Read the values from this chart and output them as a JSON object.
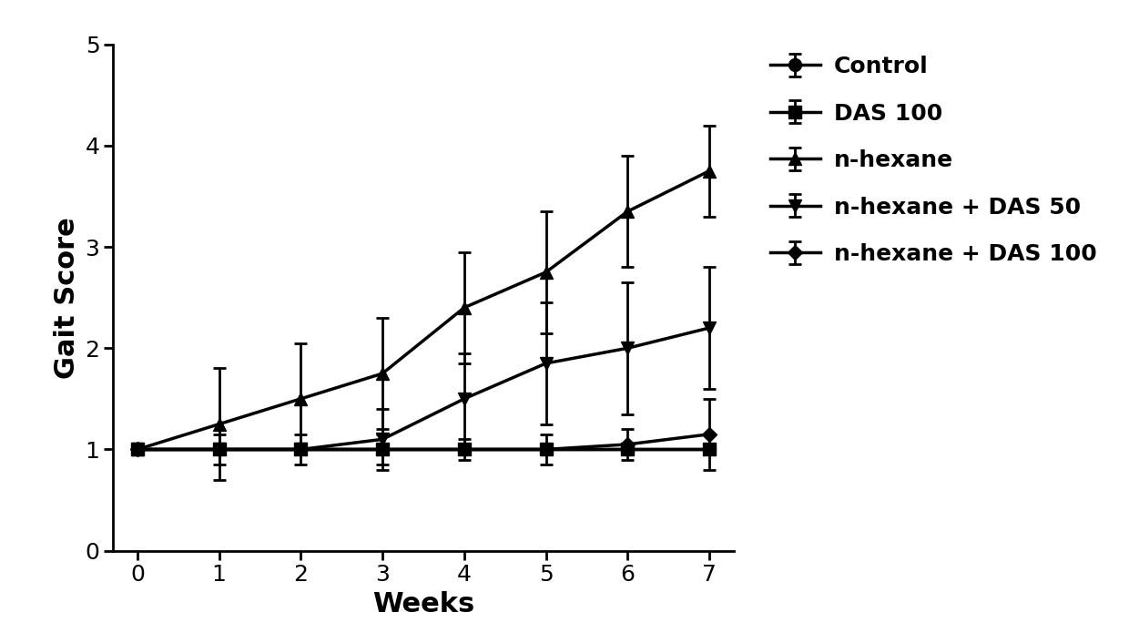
{
  "weeks": [
    0,
    1,
    2,
    3,
    4,
    5,
    6,
    7
  ],
  "series_order": [
    "Control",
    "DAS 100",
    "n-hexane",
    "n-hexane + DAS 50",
    "n-hexane + DAS 100"
  ],
  "series": {
    "Control": {
      "y": [
        1.0,
        1.0,
        1.0,
        1.0,
        1.0,
        1.0,
        1.0,
        1.0
      ],
      "yerr": [
        0.0,
        0.0,
        0.0,
        0.0,
        0.0,
        0.0,
        0.0,
        0.0
      ],
      "marker": "o",
      "markersize": 10,
      "linewidth": 2.5
    },
    "DAS 100": {
      "y": [
        1.0,
        1.0,
        1.0,
        1.0,
        1.0,
        1.0,
        1.0,
        1.0
      ],
      "yerr": [
        0.0,
        0.0,
        0.0,
        0.0,
        0.0,
        0.0,
        0.0,
        0.0
      ],
      "marker": "s",
      "markersize": 10,
      "linewidth": 2.5
    },
    "n-hexane": {
      "y": [
        1.0,
        1.25,
        1.5,
        1.75,
        2.4,
        2.75,
        3.35,
        3.75
      ],
      "yerr": [
        0.0,
        0.55,
        0.55,
        0.55,
        0.55,
        0.6,
        0.55,
        0.45
      ],
      "marker": "^",
      "markersize": 10,
      "linewidth": 2.5
    },
    "n-hexane + DAS 50": {
      "y": [
        1.0,
        1.0,
        1.0,
        1.1,
        1.5,
        1.85,
        2.0,
        2.2
      ],
      "yerr": [
        0.0,
        0.15,
        0.15,
        0.3,
        0.45,
        0.6,
        0.65,
        0.6
      ],
      "marker": "v",
      "markersize": 10,
      "linewidth": 2.5
    },
    "n-hexane + DAS 100": {
      "y": [
        1.0,
        1.0,
        1.0,
        1.0,
        1.0,
        1.0,
        1.05,
        1.15
      ],
      "yerr": [
        0.0,
        0.05,
        0.05,
        0.15,
        0.1,
        0.15,
        0.15,
        0.35
      ],
      "marker": "D",
      "markersize": 8,
      "linewidth": 2.5
    }
  },
  "color": "#000000",
  "xlabel": "Weeks",
  "ylabel": "Gait Score",
  "xlim": [
    -0.3,
    7.3
  ],
  "ylim": [
    0,
    5
  ],
  "yticks": [
    0,
    1,
    2,
    3,
    4,
    5
  ],
  "xticks": [
    0,
    1,
    2,
    3,
    4,
    5,
    6,
    7
  ],
  "xlabel_fontsize": 22,
  "ylabel_fontsize": 22,
  "tick_fontsize": 18,
  "legend_fontsize": 18,
  "legend_labelspacing": 1.1,
  "capsize": 5,
  "capthick": 2,
  "elinewidth": 2
}
